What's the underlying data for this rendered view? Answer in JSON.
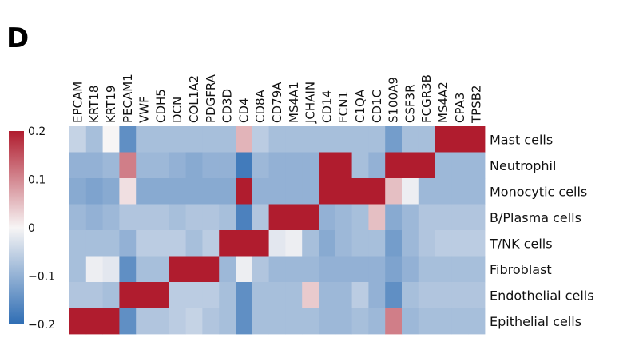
{
  "panel_label": "D",
  "colors": {
    "low": "#2e6db4",
    "mid": "#f7f5f5",
    "high": "#b01c2e"
  },
  "chart_data": {
    "type": "heatmap",
    "title": "",
    "columns": [
      "EPCAM",
      "KRT18",
      "KRT19",
      "PECAM1",
      "VWF",
      "CDH5",
      "DCN",
      "COL1A2",
      "PDGFRA",
      "CD3D",
      "CD4",
      "CD8A",
      "CD79A",
      "MS4A1",
      "JCHAIN",
      "CD14",
      "FCN1",
      "C1QA",
      "CD1C",
      "S100A9",
      "CSF3R",
      "FCGR3B",
      "MS4A2",
      "CPA3",
      "TPSB2"
    ],
    "rows": [
      "Mast cells",
      "Neutrophil",
      "Monocytic cells",
      "B/Plasma cells",
      "T/NK cells",
      "Fibroblast",
      "Endothelial cells",
      "Epithelial cells"
    ],
    "colorbar": {
      "vmin": -0.2,
      "vmax": 0.2,
      "ticks": [
        0.2,
        0.1,
        0,
        -0.1,
        -0.2
      ],
      "tick_labels": [
        "0.2",
        "0.1",
        "0",
        "−0.1",
        "−0.2"
      ]
    },
    "values": [
      [
        -0.05,
        -0.08,
        0.0,
        -0.15,
        -0.08,
        -0.08,
        -0.08,
        -0.08,
        -0.08,
        -0.08,
        0.06,
        -0.06,
        -0.08,
        -0.08,
        -0.08,
        -0.08,
        -0.08,
        -0.08,
        -0.08,
        -0.13,
        -0.08,
        -0.08,
        0.2,
        0.2,
        0.2
      ],
      [
        -0.1,
        -0.1,
        -0.09,
        0.11,
        -0.09,
        -0.09,
        -0.1,
        -0.11,
        -0.1,
        -0.1,
        -0.18,
        -0.09,
        -0.1,
        -0.1,
        -0.1,
        0.2,
        0.2,
        -0.08,
        -0.1,
        0.2,
        0.2,
        0.2,
        -0.09,
        -0.09,
        -0.09
      ],
      [
        -0.11,
        -0.12,
        -0.11,
        0.02,
        -0.11,
        -0.11,
        -0.11,
        -0.11,
        -0.11,
        -0.11,
        0.2,
        -0.1,
        -0.1,
        -0.1,
        -0.1,
        0.2,
        0.2,
        0.2,
        0.2,
        0.05,
        -0.01,
        -0.09,
        -0.09,
        -0.09,
        -0.09
      ],
      [
        -0.09,
        -0.1,
        -0.09,
        -0.07,
        -0.07,
        -0.07,
        -0.08,
        -0.07,
        -0.07,
        -0.08,
        -0.17,
        -0.07,
        0.2,
        0.2,
        0.2,
        -0.1,
        -0.09,
        -0.08,
        0.05,
        -0.11,
        -0.09,
        -0.07,
        -0.07,
        -0.07,
        -0.07
      ],
      [
        -0.08,
        -0.08,
        -0.08,
        -0.1,
        -0.06,
        -0.06,
        -0.06,
        -0.08,
        -0.06,
        0.2,
        0.2,
        0.2,
        -0.02,
        -0.01,
        -0.08,
        -0.11,
        -0.09,
        -0.08,
        -0.08,
        -0.13,
        -0.09,
        -0.07,
        -0.06,
        -0.06,
        -0.06
      ],
      [
        -0.08,
        -0.01,
        -0.02,
        -0.15,
        -0.08,
        -0.08,
        0.2,
        0.2,
        0.2,
        -0.09,
        -0.01,
        -0.07,
        -0.09,
        -0.09,
        -0.09,
        -0.1,
        -0.1,
        -0.1,
        -0.1,
        -0.12,
        -0.1,
        -0.08,
        -0.08,
        -0.08,
        -0.08
      ],
      [
        -0.07,
        -0.07,
        -0.08,
        0.2,
        0.2,
        0.2,
        -0.06,
        -0.06,
        -0.06,
        -0.08,
        -0.15,
        -0.08,
        -0.08,
        -0.08,
        0.04,
        -0.09,
        -0.09,
        -0.06,
        -0.1,
        -0.15,
        -0.08,
        -0.07,
        -0.07,
        -0.07,
        -0.07
      ],
      [
        0.2,
        0.2,
        0.2,
        -0.15,
        -0.07,
        -0.07,
        -0.06,
        -0.05,
        -0.07,
        -0.08,
        -0.15,
        -0.08,
        -0.08,
        -0.08,
        -0.08,
        -0.09,
        -0.09,
        -0.08,
        -0.09,
        0.11,
        -0.09,
        -0.08,
        -0.08,
        -0.08,
        -0.08
      ]
    ]
  }
}
